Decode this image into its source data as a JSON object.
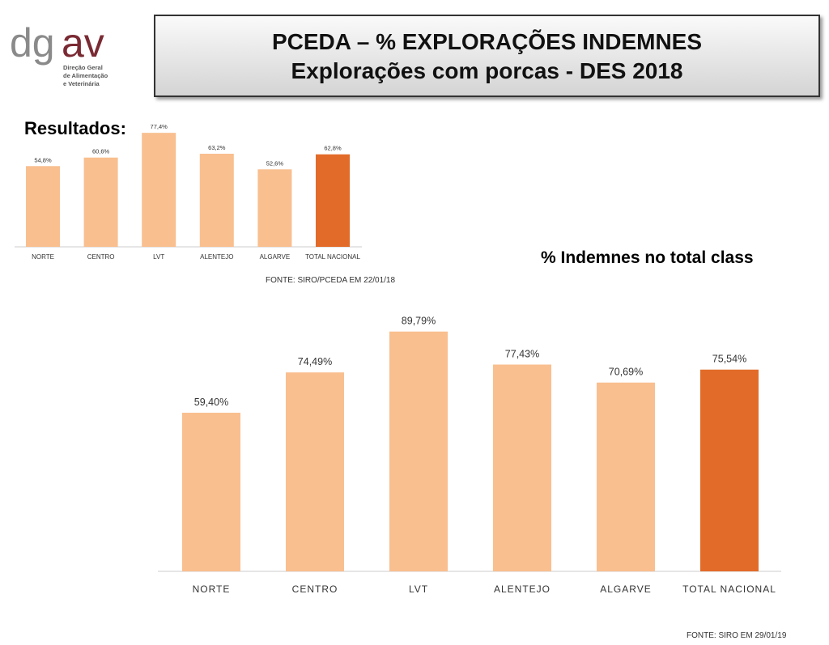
{
  "logo": {
    "text_gray": "dg",
    "text_red": "av",
    "line1": "Direção Geral",
    "line2": "de Alimentação",
    "line3": "e Veterinária"
  },
  "header": {
    "line1": "PCEDA – % EXPLORAÇÕES INDEMNES",
    "line2": "Explorações com porcas - DES 2018"
  },
  "results_label": "Resultados:",
  "subtitle": "% Indemnes no total class",
  "colors": {
    "light": "#F9BF8F",
    "dark": "#E26B29"
  },
  "chart_data": [
    {
      "type": "bar",
      "title": "Resultados 2018",
      "categories": [
        "NORTE",
        "CENTRO",
        "LVT",
        "ALENTEJO",
        "ALGARVE",
        "TOTAL NACIONAL"
      ],
      "values": [
        54.8,
        60.6,
        77.4,
        63.2,
        52.6,
        62.8
      ],
      "labels": [
        "54,8%",
        "60,6%",
        "77,4%",
        "63,2%",
        "52,6%",
        "62,8%"
      ],
      "source": "FONTE: SIRO/PCEDA EM 22/01/18",
      "ylim": [
        0,
        80
      ]
    },
    {
      "type": "bar",
      "title": "% Indemnes no total class",
      "categories": [
        "NORTE",
        "CENTRO",
        "LVT",
        "ALENTEJO",
        "ALGARVE",
        "TOTAL NACIONAL"
      ],
      "values": [
        59.4,
        74.49,
        89.79,
        77.43,
        70.69,
        75.54
      ],
      "labels": [
        "59,40%",
        "74,49%",
        "89,79%",
        "77,43%",
        "70,69%",
        "75,54%"
      ],
      "source": "FONTE: SIRO EM 29/01/19",
      "ylim": [
        0,
        90
      ]
    }
  ]
}
